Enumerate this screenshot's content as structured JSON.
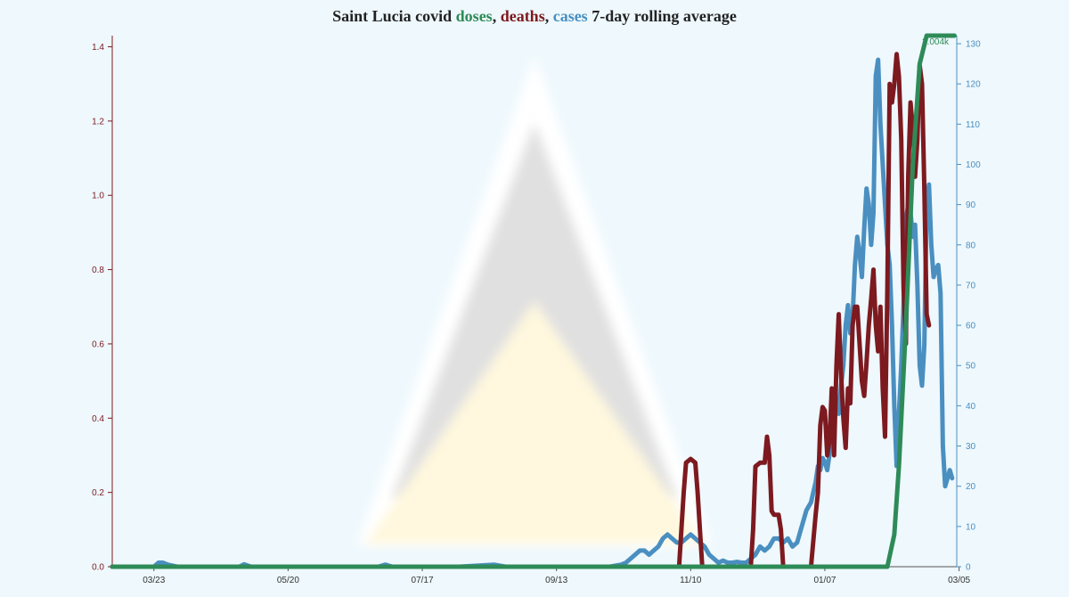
{
  "title": {
    "prefix": "Saint Lucia covid ",
    "doses": "doses",
    "sep1": ", ",
    "deaths": "deaths",
    "sep2": ", ",
    "cases": "cases",
    "suffix": " 7-day rolling average"
  },
  "colors": {
    "doses": "#2e8b57",
    "deaths": "#7d1a1f",
    "cases": "#4a8fc0",
    "background": "#eef8fd",
    "flag_triangle_black": "#e0e0e0",
    "flag_triangle_gold": "#fff8de",
    "flag_triangle_white": "#ffffff"
  },
  "chart_data": {
    "type": "line",
    "x_ticks": [
      "03/23",
      "05/20",
      "07/17",
      "09/13",
      "11/10",
      "01/07",
      "03/05"
    ],
    "x_range_days": [
      0,
      365
    ],
    "left_axis": {
      "series": "deaths",
      "ticks": [
        "0.0",
        "0.2",
        "0.4",
        "0.6",
        "0.8",
        "1.0",
        "1.2",
        "1.4"
      ],
      "ylim": [
        0,
        1.43
      ]
    },
    "right_axis": {
      "series": "cases",
      "ticks": [
        "0",
        "10",
        "20",
        "30",
        "40",
        "50",
        "60",
        "70",
        "80",
        "90",
        "100",
        "110",
        "120",
        "130"
      ],
      "ylim": [
        0,
        132
      ]
    },
    "doses_label": "2.004k",
    "series": [
      {
        "name": "cases",
        "axis": "right",
        "points": [
          [
            0,
            0
          ],
          [
            10,
            0
          ],
          [
            18,
            0
          ],
          [
            20,
            1
          ],
          [
            22,
            1
          ],
          [
            24,
            0.5
          ],
          [
            28,
            0
          ],
          [
            40,
            0
          ],
          [
            55,
            0
          ],
          [
            57,
            0.6
          ],
          [
            60,
            0
          ],
          [
            80,
            0
          ],
          [
            90,
            0
          ],
          [
            115,
            0
          ],
          [
            118,
            0.5
          ],
          [
            121,
            0
          ],
          [
            135,
            0
          ],
          [
            150,
            0
          ],
          [
            165,
            0.5
          ],
          [
            170,
            0
          ],
          [
            185,
            0
          ],
          [
            200,
            0
          ],
          [
            215,
            0
          ],
          [
            220,
            0.5
          ],
          [
            222,
            1
          ],
          [
            224,
            2
          ],
          [
            226,
            3
          ],
          [
            228,
            4
          ],
          [
            230,
            4
          ],
          [
            232,
            3
          ],
          [
            234,
            4
          ],
          [
            236,
            5
          ],
          [
            238,
            7
          ],
          [
            240,
            8
          ],
          [
            242,
            7
          ],
          [
            244,
            6
          ],
          [
            246,
            6
          ],
          [
            248,
            7
          ],
          [
            250,
            8
          ],
          [
            252,
            7
          ],
          [
            254,
            6
          ],
          [
            256,
            5
          ],
          [
            258,
            3
          ],
          [
            260,
            2
          ],
          [
            262,
            1
          ],
          [
            264,
            1.5
          ],
          [
            266,
            1
          ],
          [
            268,
            1
          ],
          [
            270,
            1.2
          ],
          [
            272,
            1
          ],
          [
            274,
            1
          ],
          [
            276,
            2
          ],
          [
            278,
            3
          ],
          [
            280,
            5
          ],
          [
            282,
            4
          ],
          [
            284,
            5
          ],
          [
            286,
            7
          ],
          [
            288,
            7
          ],
          [
            290,
            6
          ],
          [
            292,
            7
          ],
          [
            294,
            5
          ],
          [
            296,
            6
          ],
          [
            298,
            10
          ],
          [
            300,
            14
          ],
          [
            302,
            16
          ],
          [
            304,
            21
          ],
          [
            305,
            25
          ],
          [
            306,
            24
          ],
          [
            307,
            27
          ],
          [
            308,
            26
          ],
          [
            309,
            24
          ],
          [
            310,
            28
          ],
          [
            311,
            35
          ],
          [
            312,
            38
          ],
          [
            313,
            40
          ],
          [
            314,
            38
          ],
          [
            315,
            45
          ],
          [
            316,
            50
          ],
          [
            317,
            60
          ],
          [
            318,
            65
          ],
          [
            319,
            58
          ],
          [
            320,
            62
          ],
          [
            321,
            75
          ],
          [
            322,
            82
          ],
          [
            323,
            78
          ],
          [
            324,
            72
          ],
          [
            325,
            84
          ],
          [
            326,
            94
          ],
          [
            327,
            90
          ],
          [
            328,
            80
          ],
          [
            329,
            88
          ],
          [
            330,
            122
          ],
          [
            331,
            126
          ],
          [
            332,
            110
          ],
          [
            333,
            100
          ],
          [
            334,
            90
          ],
          [
            335,
            80
          ],
          [
            336,
            75
          ],
          [
            337,
            60
          ],
          [
            338,
            40
          ],
          [
            339,
            25
          ],
          [
            340,
            38
          ],
          [
            341,
            50
          ],
          [
            342,
            65
          ],
          [
            343,
            86
          ],
          [
            344,
            90
          ],
          [
            345,
            88
          ],
          [
            346,
            82
          ],
          [
            347,
            85
          ],
          [
            348,
            70
          ],
          [
            349,
            50
          ],
          [
            350,
            45
          ],
          [
            351,
            55
          ],
          [
            352,
            90
          ],
          [
            353,
            95
          ],
          [
            354,
            80
          ],
          [
            355,
            72
          ],
          [
            356,
            74
          ],
          [
            357,
            75
          ],
          [
            358,
            68
          ],
          [
            359,
            30
          ],
          [
            360,
            20
          ],
          [
            361,
            22
          ],
          [
            362,
            24
          ],
          [
            363,
            22
          ]
        ]
      },
      {
        "name": "deaths",
        "axis": "left",
        "points": [
          [
            0,
            0
          ],
          [
            80,
            0
          ],
          [
            160,
            0
          ],
          [
            240,
            0
          ],
          [
            245,
            0
          ],
          [
            247,
            0.2
          ],
          [
            248,
            0.28
          ],
          [
            250,
            0.29
          ],
          [
            252,
            0.28
          ],
          [
            253,
            0.2
          ],
          [
            255,
            0
          ],
          [
            270,
            0
          ],
          [
            276,
            0
          ],
          [
            277,
            0.1
          ],
          [
            278,
            0.27
          ],
          [
            280,
            0.28
          ],
          [
            282,
            0.28
          ],
          [
            283,
            0.35
          ],
          [
            284,
            0.3
          ],
          [
            285,
            0.15
          ],
          [
            286,
            0.14
          ],
          [
            288,
            0.14
          ],
          [
            289,
            0.1
          ],
          [
            290,
            0
          ],
          [
            300,
            0
          ],
          [
            302,
            0
          ],
          [
            303,
            0.07
          ],
          [
            304,
            0.14
          ],
          [
            305,
            0.2
          ],
          [
            306,
            0.38
          ],
          [
            307,
            0.43
          ],
          [
            308,
            0.42
          ],
          [
            309,
            0.3
          ],
          [
            310,
            0.34
          ],
          [
            311,
            0.48
          ],
          [
            312,
            0.3
          ],
          [
            313,
            0.54
          ],
          [
            314,
            0.68
          ],
          [
            315,
            0.52
          ],
          [
            316,
            0.4
          ],
          [
            317,
            0.32
          ],
          [
            318,
            0.48
          ],
          [
            319,
            0.44
          ],
          [
            320,
            0.65
          ],
          [
            321,
            0.7
          ],
          [
            322,
            0.7
          ],
          [
            323,
            0.6
          ],
          [
            324,
            0.5
          ],
          [
            325,
            0.46
          ],
          [
            326,
            0.55
          ],
          [
            327,
            0.65
          ],
          [
            328,
            0.72
          ],
          [
            329,
            0.8
          ],
          [
            330,
            0.65
          ],
          [
            331,
            0.58
          ],
          [
            332,
            0.7
          ],
          [
            333,
            0.48
          ],
          [
            334,
            0.35
          ],
          [
            335,
            0.75
          ],
          [
            336,
            1.3
          ],
          [
            337,
            1.25
          ],
          [
            338,
            1.3
          ],
          [
            339,
            1.38
          ],
          [
            340,
            1.32
          ],
          [
            341,
            1.15
          ],
          [
            342,
            0.75
          ],
          [
            343,
            0.6
          ],
          [
            344,
            1.05
          ],
          [
            345,
            1.25
          ],
          [
            346,
            1.18
          ],
          [
            347,
            1.05
          ],
          [
            348,
            1.15
          ],
          [
            349,
            1.35
          ],
          [
            350,
            1.3
          ],
          [
            351,
            1.02
          ],
          [
            352,
            0.68
          ],
          [
            353,
            0.65
          ]
        ]
      },
      {
        "name": "doses",
        "axis": "right",
        "points": [
          [
            0,
            0
          ],
          [
            200,
            0
          ],
          [
            335,
            0
          ],
          [
            338,
            8
          ],
          [
            340,
            25
          ],
          [
            343,
            60
          ],
          [
            346,
            100
          ],
          [
            349,
            125
          ],
          [
            352,
            132
          ],
          [
            364,
            132
          ]
        ]
      }
    ]
  }
}
